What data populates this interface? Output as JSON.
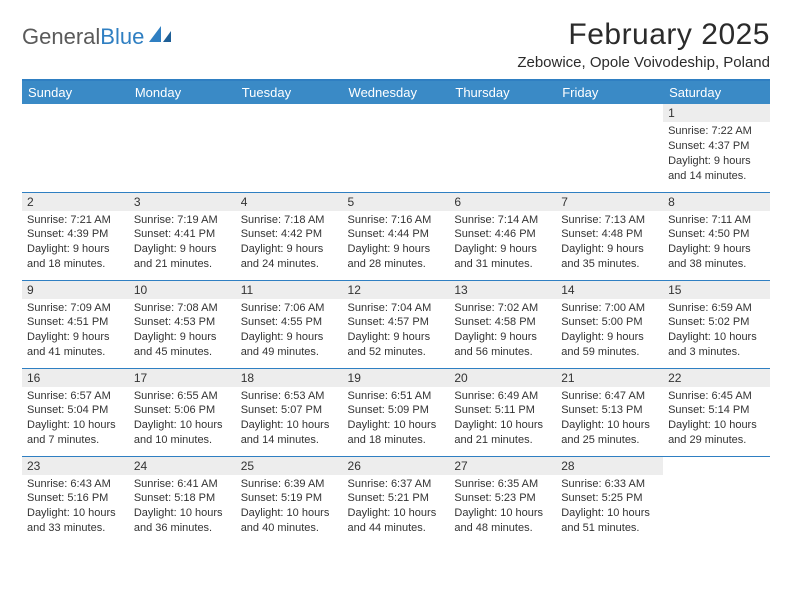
{
  "logo": {
    "text_general": "General",
    "text_blue": "Blue"
  },
  "title": "February 2025",
  "location": "Zebowice, Opole Voivodeship, Poland",
  "colors": {
    "header_bg": "#3a8ac6",
    "accent": "#2f7fc2",
    "daynum_bg": "#ededed",
    "text": "#333333",
    "page_bg": "#ffffff"
  },
  "day_headers": [
    "Sunday",
    "Monday",
    "Tuesday",
    "Wednesday",
    "Thursday",
    "Friday",
    "Saturday"
  ],
  "weeks": [
    [
      null,
      null,
      null,
      null,
      null,
      null,
      {
        "n": "1",
        "sunrise": "7:22 AM",
        "sunset": "4:37 PM",
        "daylight": "9 hours and 14 minutes."
      }
    ],
    [
      {
        "n": "2",
        "sunrise": "7:21 AM",
        "sunset": "4:39 PM",
        "daylight": "9 hours and 18 minutes."
      },
      {
        "n": "3",
        "sunrise": "7:19 AM",
        "sunset": "4:41 PM",
        "daylight": "9 hours and 21 minutes."
      },
      {
        "n": "4",
        "sunrise": "7:18 AM",
        "sunset": "4:42 PM",
        "daylight": "9 hours and 24 minutes."
      },
      {
        "n": "5",
        "sunrise": "7:16 AM",
        "sunset": "4:44 PM",
        "daylight": "9 hours and 28 minutes."
      },
      {
        "n": "6",
        "sunrise": "7:14 AM",
        "sunset": "4:46 PM",
        "daylight": "9 hours and 31 minutes."
      },
      {
        "n": "7",
        "sunrise": "7:13 AM",
        "sunset": "4:48 PM",
        "daylight": "9 hours and 35 minutes."
      },
      {
        "n": "8",
        "sunrise": "7:11 AM",
        "sunset": "4:50 PM",
        "daylight": "9 hours and 38 minutes."
      }
    ],
    [
      {
        "n": "9",
        "sunrise": "7:09 AM",
        "sunset": "4:51 PM",
        "daylight": "9 hours and 41 minutes."
      },
      {
        "n": "10",
        "sunrise": "7:08 AM",
        "sunset": "4:53 PM",
        "daylight": "9 hours and 45 minutes."
      },
      {
        "n": "11",
        "sunrise": "7:06 AM",
        "sunset": "4:55 PM",
        "daylight": "9 hours and 49 minutes."
      },
      {
        "n": "12",
        "sunrise": "7:04 AM",
        "sunset": "4:57 PM",
        "daylight": "9 hours and 52 minutes."
      },
      {
        "n": "13",
        "sunrise": "7:02 AM",
        "sunset": "4:58 PM",
        "daylight": "9 hours and 56 minutes."
      },
      {
        "n": "14",
        "sunrise": "7:00 AM",
        "sunset": "5:00 PM",
        "daylight": "9 hours and 59 minutes."
      },
      {
        "n": "15",
        "sunrise": "6:59 AM",
        "sunset": "5:02 PM",
        "daylight": "10 hours and 3 minutes."
      }
    ],
    [
      {
        "n": "16",
        "sunrise": "6:57 AM",
        "sunset": "5:04 PM",
        "daylight": "10 hours and 7 minutes."
      },
      {
        "n": "17",
        "sunrise": "6:55 AM",
        "sunset": "5:06 PM",
        "daylight": "10 hours and 10 minutes."
      },
      {
        "n": "18",
        "sunrise": "6:53 AM",
        "sunset": "5:07 PM",
        "daylight": "10 hours and 14 minutes."
      },
      {
        "n": "19",
        "sunrise": "6:51 AM",
        "sunset": "5:09 PM",
        "daylight": "10 hours and 18 minutes."
      },
      {
        "n": "20",
        "sunrise": "6:49 AM",
        "sunset": "5:11 PM",
        "daylight": "10 hours and 21 minutes."
      },
      {
        "n": "21",
        "sunrise": "6:47 AM",
        "sunset": "5:13 PM",
        "daylight": "10 hours and 25 minutes."
      },
      {
        "n": "22",
        "sunrise": "6:45 AM",
        "sunset": "5:14 PM",
        "daylight": "10 hours and 29 minutes."
      }
    ],
    [
      {
        "n": "23",
        "sunrise": "6:43 AM",
        "sunset": "5:16 PM",
        "daylight": "10 hours and 33 minutes."
      },
      {
        "n": "24",
        "sunrise": "6:41 AM",
        "sunset": "5:18 PM",
        "daylight": "10 hours and 36 minutes."
      },
      {
        "n": "25",
        "sunrise": "6:39 AM",
        "sunset": "5:19 PM",
        "daylight": "10 hours and 40 minutes."
      },
      {
        "n": "26",
        "sunrise": "6:37 AM",
        "sunset": "5:21 PM",
        "daylight": "10 hours and 44 minutes."
      },
      {
        "n": "27",
        "sunrise": "6:35 AM",
        "sunset": "5:23 PM",
        "daylight": "10 hours and 48 minutes."
      },
      {
        "n": "28",
        "sunrise": "6:33 AM",
        "sunset": "5:25 PM",
        "daylight": "10 hours and 51 minutes."
      },
      null
    ]
  ],
  "labels": {
    "sunrise": "Sunrise:",
    "sunset": "Sunset:",
    "daylight": "Daylight:"
  }
}
